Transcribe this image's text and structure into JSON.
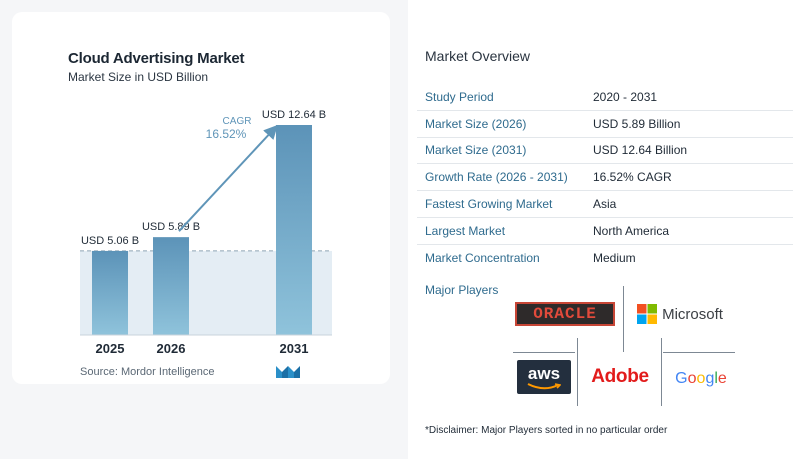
{
  "chart_data": {
    "type": "bar",
    "title": "Cloud Advertising Market",
    "subtitle": "Market Size in USD Billion",
    "categories": [
      "2025",
      "2026",
      "2031"
    ],
    "values": [
      5.06,
      5.89,
      12.64
    ],
    "value_labels": [
      "USD 5.06 B",
      "USD 5.89 B",
      "USD 12.64 B"
    ],
    "ylim": [
      0,
      12.64
    ],
    "reference_line_value": 5.06,
    "cagr_label": "CAGR",
    "cagr_value": "16.52%",
    "colors": {
      "bar_top": "#5c93b8",
      "bar_bottom": "#8fc3db",
      "shade": "#e4edf4",
      "arrow": "#5f95b8",
      "cagr": "#5f95b8"
    }
  },
  "source": {
    "label": "Source:",
    "text": "Mordor Intelligence"
  },
  "overview": {
    "title": "Market Overview",
    "rows": [
      {
        "label": "Study Period",
        "value": "2020 - 2031"
      },
      {
        "label": "Market Size (2026)",
        "value": "USD 5.89 Billion"
      },
      {
        "label": "Market Size (2031)",
        "value": "USD 12.64 Billion"
      },
      {
        "label": "Growth Rate (2026 - 2031)",
        "value": "16.52% CAGR"
      },
      {
        "label": "Fastest Growing Market",
        "value": "Asia"
      },
      {
        "label": "Largest Market",
        "value": "North America"
      },
      {
        "label": "Market Concentration",
        "value": "Medium"
      }
    ]
  },
  "players": {
    "title": "Major Players",
    "oracle": "ORACLE",
    "microsoft": "Microsoft",
    "aws": "aws",
    "adobe": "Adobe",
    "google": [
      "G",
      "o",
      "o",
      "g",
      "l",
      "e"
    ]
  },
  "disclaimer": "*Disclaimer: Major Players sorted in no particular order"
}
